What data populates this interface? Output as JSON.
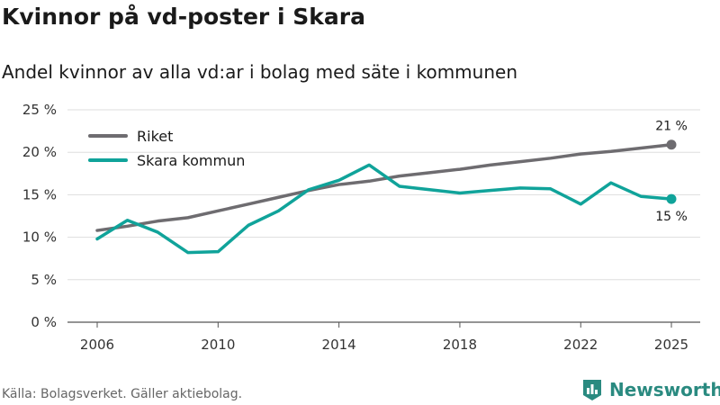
{
  "title": "Kvinnor på vd-poster i Skara",
  "subtitle": "Andel kvinnor av alla vd:ar i bolag med säte i kommunen",
  "source": "Källa: Bolagsverket. Gäller aktiebolag.",
  "brand": "Newsworthy",
  "colors": {
    "riket": "#6e6c70",
    "skara": "#10a39a",
    "grid": "#dddddd",
    "brand": "#2a8a80"
  },
  "chart_data": {
    "type": "line",
    "title": "Kvinnor på vd-poster i Skara",
    "xlabel": "",
    "ylabel": "",
    "xlim": [
      2006,
      2025
    ],
    "ylim": [
      0,
      25
    ],
    "x_ticks": [
      2006,
      2010,
      2014,
      2018,
      2022,
      2025
    ],
    "y_ticks": [
      0,
      5,
      10,
      15,
      20,
      25
    ],
    "y_tick_labels": [
      "0 %",
      "5 %",
      "10 %",
      "15 %",
      "20 %",
      "25 %"
    ],
    "legend_position": "top-left",
    "x": [
      2006,
      2007,
      2008,
      2009,
      2010,
      2011,
      2012,
      2013,
      2014,
      2015,
      2016,
      2017,
      2018,
      2019,
      2020,
      2021,
      2022,
      2023,
      2024,
      2025
    ],
    "series": [
      {
        "name": "Riket",
        "key": "riket",
        "values": [
          10.8,
          11.3,
          11.9,
          12.3,
          13.1,
          13.9,
          14.7,
          15.5,
          16.2,
          16.6,
          17.2,
          17.6,
          18.0,
          18.5,
          18.9,
          19.3,
          19.8,
          20.1,
          20.5,
          20.9
        ],
        "end_label": "21 %"
      },
      {
        "name": "Skara kommun",
        "key": "skara",
        "values": [
          9.8,
          12.0,
          10.6,
          8.2,
          8.3,
          11.4,
          13.1,
          15.6,
          16.7,
          18.5,
          16.0,
          15.6,
          15.2,
          15.5,
          15.8,
          15.7,
          13.9,
          16.4,
          14.8,
          14.5
        ],
        "end_label": "15 %"
      }
    ]
  }
}
